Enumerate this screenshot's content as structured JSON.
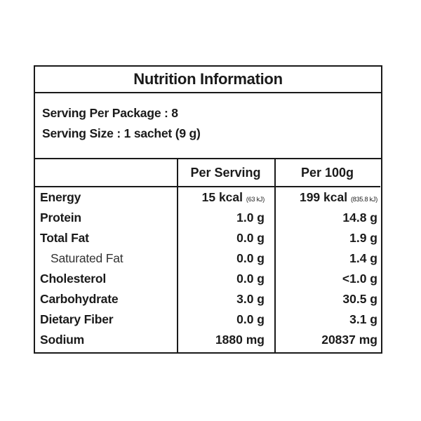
{
  "title": "Nutrition Information",
  "serving": {
    "per_package": "Serving Per Package : 8",
    "size": "Serving Size : 1 sachet (9 g)"
  },
  "columns": {
    "per_serving": "Per Serving",
    "per_100g": "Per 100g"
  },
  "rows": [
    {
      "name": "Energy",
      "per_serving": "15 kcal",
      "per_serving_note": "(63 kJ)",
      "per_100g": "199 kcal",
      "per_100g_note": "(835.8 kJ)"
    },
    {
      "name": "Protein",
      "per_serving": "1.0 g",
      "per_100g": "14.8 g"
    },
    {
      "name": "Total Fat",
      "per_serving": "0.0 g",
      "per_100g": "1.9 g"
    },
    {
      "name": "Saturated Fat",
      "per_serving": "0.0 g",
      "per_100g": "1.4 g"
    },
    {
      "name": "Cholesterol",
      "per_serving": "0.0 g",
      "per_100g": "<1.0 g"
    },
    {
      "name": "Carbohydrate",
      "per_serving": "3.0 g",
      "per_100g": "30.5 g"
    },
    {
      "name": "Dietary Fiber",
      "per_serving": "0.0 g",
      "per_100g": "3.1 g"
    },
    {
      "name": "Sodium",
      "per_serving": "1880 mg",
      "per_100g": "20837 mg"
    }
  ]
}
